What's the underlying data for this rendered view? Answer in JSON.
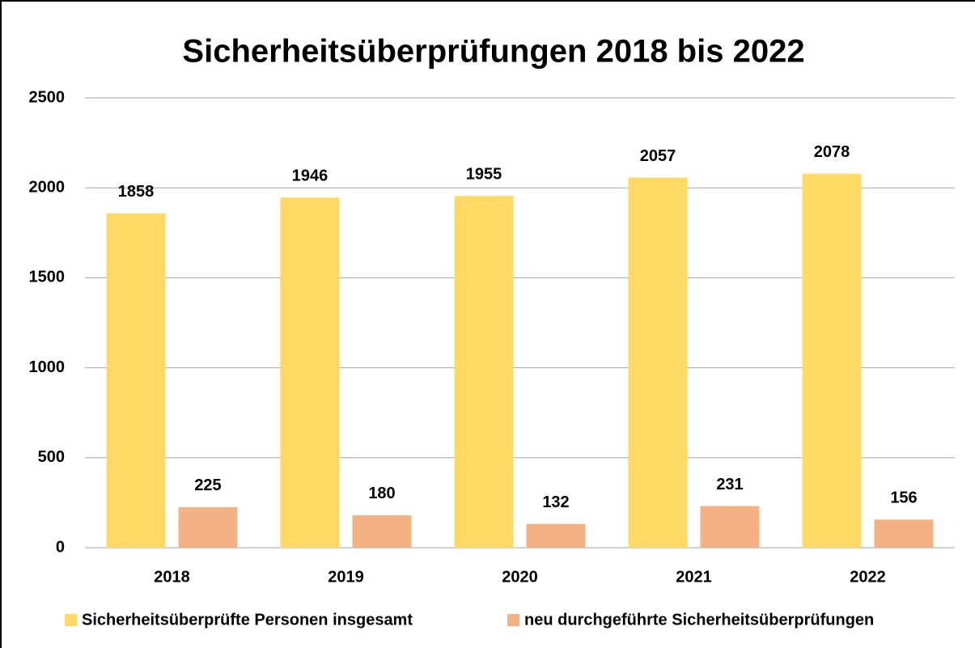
{
  "chart_data": {
    "type": "bar",
    "title": "Sicherheitsüberprüfungen 2018 bis 2022",
    "categories": [
      "2018",
      "2019",
      "2020",
      "2021",
      "2022"
    ],
    "series": [
      {
        "name": "Sicherheitsüberprüfte Personen insgesamt",
        "color": "#FFD966",
        "values": [
          1858,
          1946,
          1955,
          2057,
          2078
        ]
      },
      {
        "name": "neu durchgeführte Sicherheitsüberprüfungen",
        "color": "#F4B183",
        "values": [
          225,
          180,
          132,
          231,
          156
        ]
      }
    ],
    "ylim": [
      0,
      2500
    ],
    "yticks": [
      0,
      500,
      1000,
      1500,
      2000,
      2500
    ],
    "grid": true,
    "legend": "bottom"
  }
}
